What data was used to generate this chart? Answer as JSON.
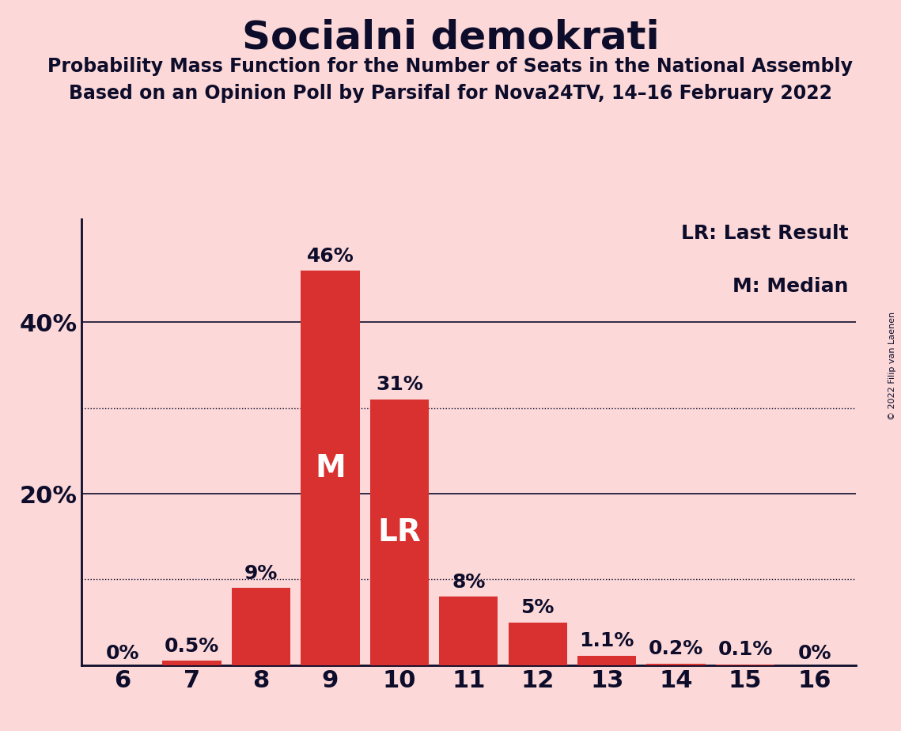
{
  "title": "Socialni demokrati",
  "subtitle1": "Probability Mass Function for the Number of Seats in the National Assembly",
  "subtitle2": "Based on an Opinion Poll by Parsifal for Nova24TV, 14–16 February 2022",
  "copyright": "© 2022 Filip van Laenen",
  "categories": [
    6,
    7,
    8,
    9,
    10,
    11,
    12,
    13,
    14,
    15,
    16
  ],
  "values": [
    0.0,
    0.5,
    9.0,
    46.0,
    31.0,
    8.0,
    5.0,
    1.1,
    0.2,
    0.1,
    0.0
  ],
  "labels": [
    "0%",
    "0.5%",
    "9%",
    "46%",
    "31%",
    "8%",
    "5%",
    "1.1%",
    "0.2%",
    "0.1%",
    "0%"
  ],
  "bar_color": "#d93030",
  "background_color": "#fcd8d8",
  "text_color": "#0d0d2b",
  "median_bar_index": 3,
  "lr_bar_index": 4,
  "median_label": "M",
  "lr_label": "LR",
  "legend_lr": "LR: Last Result",
  "legend_m": "M: Median",
  "dotted_lines": [
    10,
    30
  ],
  "solid_lines": [
    20,
    40
  ],
  "ylim": [
    0,
    52
  ],
  "title_fontsize": 36,
  "subtitle_fontsize": 17,
  "tick_fontsize": 22,
  "label_fontsize": 18,
  "inside_label_fontsize": 28,
  "legend_fontsize": 18
}
